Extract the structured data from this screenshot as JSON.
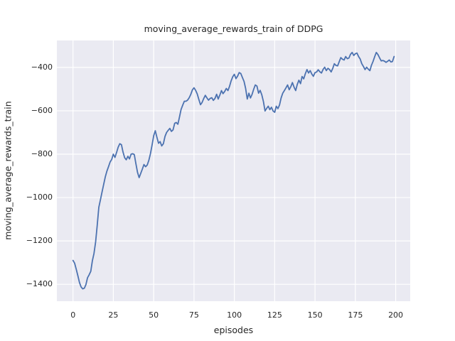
{
  "chart_data": {
    "type": "line",
    "title": "moving_average_rewards_train of DDPG",
    "xlabel": "episodes",
    "ylabel": "moving_average_rewards_train",
    "grid": true,
    "legend_position": "none",
    "style": "seaborn-darkgrid",
    "colors": {
      "line": "#4c72b0",
      "axes_background": "#eaeaf2",
      "gridline": "#ffffff",
      "text": "#262626",
      "figure_background": "#ffffff"
    },
    "xlim": [
      -10,
      209
    ],
    "ylim": [
      -1478,
      -276
    ],
    "x_ticks": [
      0,
      25,
      50,
      75,
      100,
      125,
      150,
      175,
      200
    ],
    "x_tick_labels": [
      "0",
      "25",
      "50",
      "75",
      "100",
      "125",
      "150",
      "175",
      "200"
    ],
    "y_ticks": [
      -400,
      -600,
      -800,
      -1000,
      -1200,
      -1400
    ],
    "y_tick_labels": [
      "−400",
      "−600",
      "−800",
      "−1000",
      "−1200",
      "−1400"
    ],
    "series": [
      {
        "name": "moving_average_rewards_train",
        "x_start": 0,
        "x_step": 1,
        "values": [
          -1290,
          -1303,
          -1330,
          -1360,
          -1392,
          -1412,
          -1421,
          -1418,
          -1402,
          -1370,
          -1356,
          -1340,
          -1292,
          -1258,
          -1205,
          -1130,
          -1045,
          -1010,
          -975,
          -940,
          -905,
          -878,
          -858,
          -836,
          -824,
          -800,
          -815,
          -792,
          -768,
          -752,
          -756,
          -790,
          -816,
          -826,
          -810,
          -822,
          -800,
          -798,
          -802,
          -845,
          -885,
          -908,
          -888,
          -868,
          -848,
          -858,
          -850,
          -828,
          -798,
          -758,
          -715,
          -692,
          -722,
          -750,
          -742,
          -762,
          -752,
          -718,
          -700,
          -690,
          -681,
          -695,
          -688,
          -658,
          -654,
          -662,
          -628,
          -594,
          -574,
          -556,
          -556,
          -551,
          -540,
          -524,
          -504,
          -494,
          -506,
          -522,
          -548,
          -572,
          -562,
          -544,
          -529,
          -541,
          -551,
          -543,
          -540,
          -552,
          -543,
          -524,
          -546,
          -528,
          -507,
          -521,
          -511,
          -497,
          -507,
          -488,
          -462,
          -443,
          -432,
          -452,
          -440,
          -424,
          -428,
          -447,
          -465,
          -497,
          -546,
          -519,
          -541,
          -524,
          -500,
          -481,
          -486,
          -519,
          -506,
          -526,
          -557,
          -601,
          -589,
          -579,
          -595,
          -584,
          -601,
          -607,
          -579,
          -590,
          -573,
          -541,
          -519,
          -507,
          -494,
          -481,
          -503,
          -489,
          -470,
          -491,
          -507,
          -479,
          -459,
          -475,
          -442,
          -453,
          -429,
          -410,
          -426,
          -415,
          -431,
          -441,
          -424,
          -421,
          -411,
          -420,
          -426,
          -409,
          -399,
          -415,
          -404,
          -410,
          -421,
          -404,
          -383,
          -391,
          -393,
          -374,
          -355,
          -362,
          -366,
          -350,
          -360,
          -357,
          -340,
          -331,
          -345,
          -337,
          -334,
          -350,
          -361,
          -383,
          -396,
          -410,
          -399,
          -408,
          -415,
          -390,
          -372,
          -350,
          -331,
          -341,
          -356,
          -370,
          -368,
          -371,
          -377,
          -372,
          -366,
          -375,
          -373,
          -350
        ]
      }
    ]
  }
}
